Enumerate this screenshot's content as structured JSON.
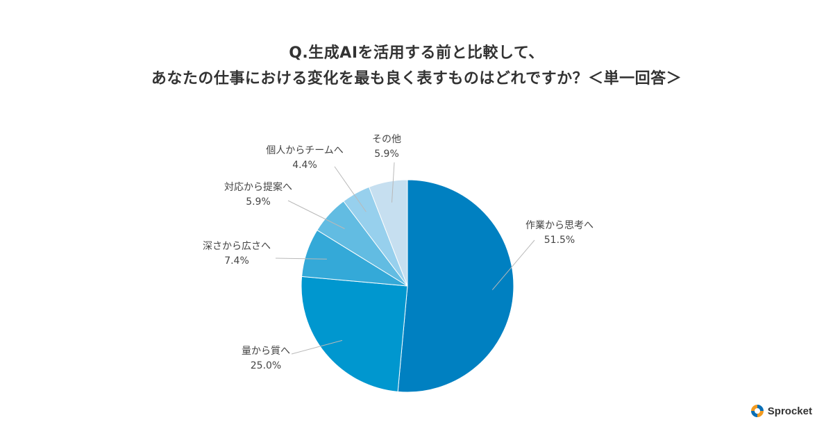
{
  "title_lines": [
    "Q.生成AIを活用する前と比較して、",
    "あなたの仕事における変化を最も良く表すものはどれですか？＜単一回答＞"
  ],
  "chart_data": {
    "type": "pie",
    "title": "Q.生成AIを活用する前と比較して、あなたの仕事における変化を最も良く表すものはどれですか？＜単一回答＞",
    "slices": [
      {
        "label": "作業から思考へ",
        "value": 51.5,
        "value_label": "51.5%",
        "color": "#0080c1"
      },
      {
        "label": "量から質へ",
        "value": 25.0,
        "value_label": "25.0%",
        "color": "#0097cf"
      },
      {
        "label": "深さから広さへ",
        "value": 7.4,
        "value_label": "7.4%",
        "color": "#34a9d8"
      },
      {
        "label": "対応から提案へ",
        "value": 5.9,
        "value_label": "5.9%",
        "color": "#62bce2"
      },
      {
        "label": "個人からチームへ",
        "value": 4.4,
        "value_label": "4.4%",
        "color": "#97d0ed"
      },
      {
        "label": "その他",
        "value": 5.9,
        "value_label": "5.9%",
        "color": "#c6dff0"
      }
    ]
  },
  "logo": {
    "text": "Sprocket",
    "icon": "sprocket-logo-icon"
  }
}
